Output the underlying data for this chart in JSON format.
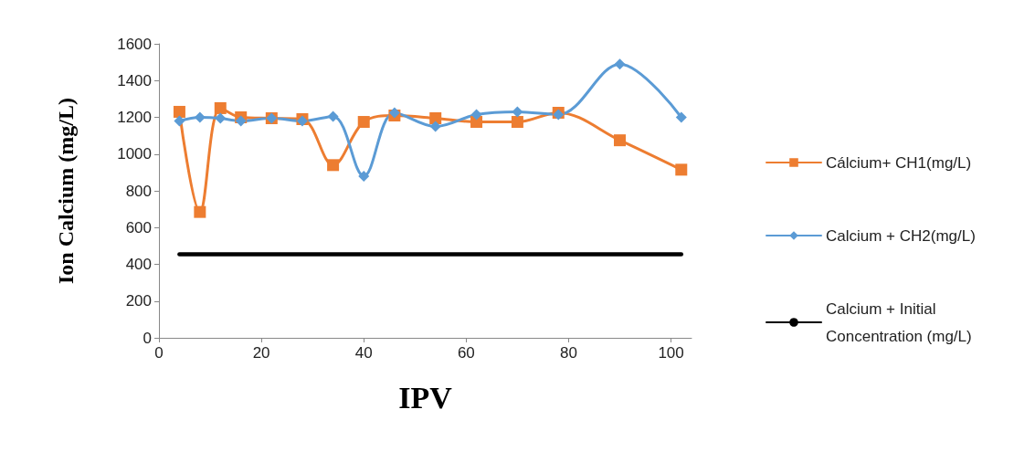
{
  "chart_data": {
    "type": "line",
    "xlabel": "IPV",
    "ylabel": "Ion Calcium (mg/L)",
    "xlim": [
      0,
      104
    ],
    "xticks": [
      0,
      20,
      40,
      60,
      80,
      100
    ],
    "ylim": [
      0,
      1600
    ],
    "yticks": [
      0,
      200,
      400,
      600,
      800,
      1000,
      1200,
      1400,
      1600
    ],
    "grid": false,
    "legend": "right",
    "line_style": "solid",
    "series": [
      {
        "name": "Cálcium+ CH1(mg/L)",
        "color": "#ed7d31",
        "marker": "square",
        "x": [
          4,
          8,
          12,
          16,
          22,
          28,
          34,
          40,
          46,
          54,
          62,
          70,
          78,
          90,
          102
        ],
        "values": [
          1230,
          685,
          1250,
          1200,
          1195,
          1190,
          940,
          1175,
          1210,
          1195,
          1175,
          1175,
          1225,
          1075,
          915
        ]
      },
      {
        "name": "Calcium + CH2(mg/L)",
        "color": "#5b9bd5",
        "marker": "diamond",
        "x": [
          4,
          8,
          12,
          16,
          22,
          28,
          34,
          40,
          46,
          54,
          62,
          70,
          78,
          90,
          102
        ],
        "values": [
          1180,
          1200,
          1195,
          1180,
          1195,
          1180,
          1205,
          880,
          1225,
          1150,
          1215,
          1230,
          1215,
          1490,
          1200
        ]
      },
      {
        "name": "Calcium + Initial Concentration (mg/L)",
        "color": "#000000",
        "marker": "none",
        "x": [
          4,
          102
        ],
        "values": [
          455,
          455
        ]
      }
    ]
  }
}
